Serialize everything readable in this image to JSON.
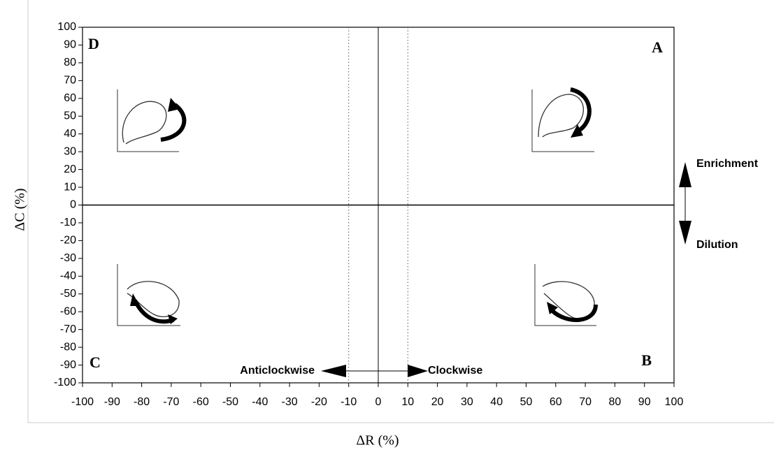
{
  "chart_data": {
    "type": "quadrant",
    "xlabel": "ΔR (%)",
    "ylabel": "ΔC (%)",
    "xlim": [
      -100,
      100
    ],
    "ylim": [
      -100,
      100
    ],
    "xticks": [
      -100,
      -90,
      -80,
      -70,
      -60,
      -50,
      -40,
      -30,
      -20,
      -10,
      0,
      10,
      20,
      30,
      40,
      50,
      60,
      70,
      80,
      90,
      100
    ],
    "yticks": [
      -100,
      -90,
      -80,
      -70,
      -60,
      -50,
      -40,
      -30,
      -20,
      -10,
      0,
      10,
      20,
      30,
      40,
      50,
      60,
      70,
      80,
      90,
      100
    ],
    "dotted_x": [
      -10,
      10
    ],
    "quadrants": {
      "top_left": "D",
      "top_right": "A",
      "bottom_left": "C",
      "bottom_right": "B"
    },
    "annotations": {
      "up": "Enrichment",
      "down": "Dilution",
      "left": "Anticlockwise",
      "right": "Clockwise"
    }
  }
}
